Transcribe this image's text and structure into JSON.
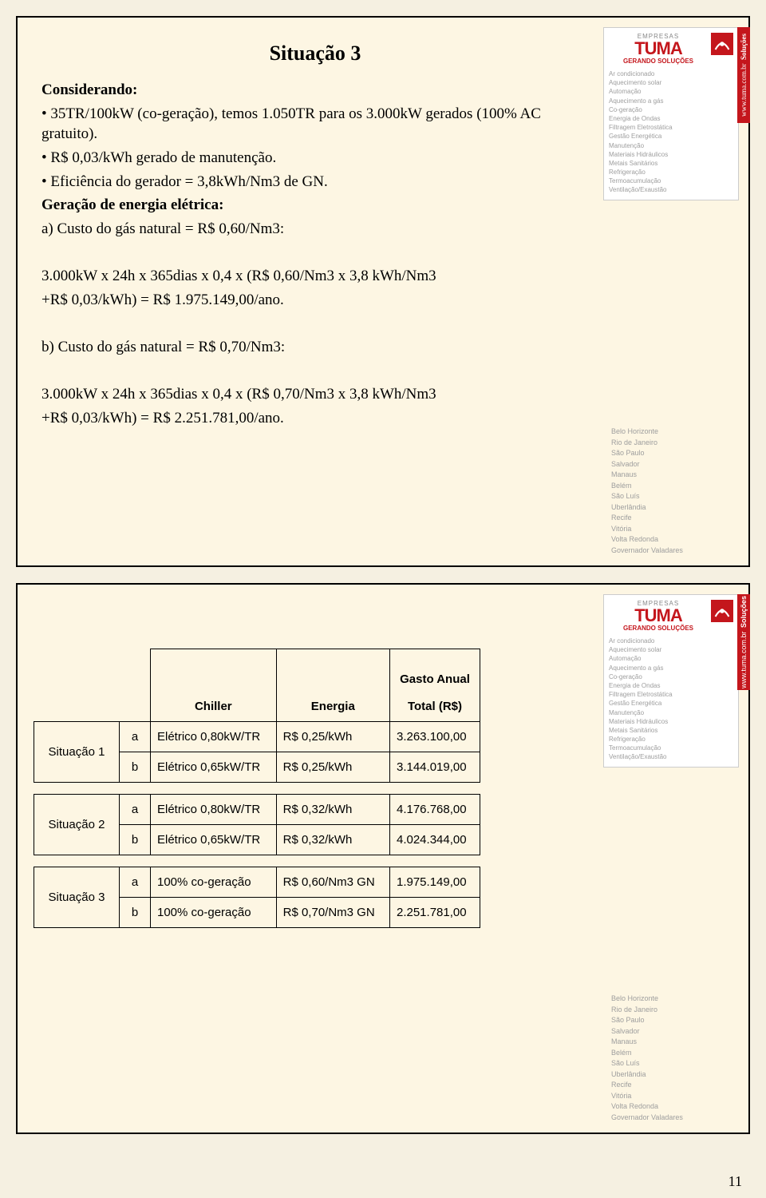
{
  "slide1": {
    "title": "Situação 3",
    "considerando": "Considerando:",
    "b1": "35TR/100kW (co-geração), temos 1.050TR para os 3.000kW gerados (100% AC gratuito).",
    "b2": "R$ 0,03/kWh gerado de manutenção.",
    "b3": "Eficiência do gerador = 3,8kWh/Nm3 de GN.",
    "geracao": "Geração de energia elétrica:",
    "a_label": "a)    Custo do gás natural = R$ 0,60/Nm3:",
    "a_calc1": "3.000kW x 24h x 365dias x 0,4 x (R$ 0,60/Nm3 x 3,8 kWh/Nm3",
    "a_calc2": "+R$ 0,03/kWh) = R$ 1.975.149,00/ano.",
    "b_label": "b)    Custo do gás natural = R$ 0,70/Nm3:",
    "b_calc1": "3.000kW x 24h x 365dias x 0,4 x (R$ 0,70/Nm3 x 3,8 kWh/Nm3",
    "b_calc2": "+R$ 0,03/kWh) = R$ 2.251.781,00/ano."
  },
  "logo": {
    "empresas": "EMPRESAS",
    "name": "TUMA",
    "tagline": "GERANDO SOLUÇÕES",
    "site": "www.tuma.com.br",
    "solucoes": "Soluções",
    "services": [
      "Ar condicionado",
      "Aquecimento solar",
      "Automação",
      "Aquecimento a gás",
      "Co-geração",
      "Energia de Ondas",
      "Filtragem Eletrostática",
      "Gestão Energética",
      "Manutenção",
      "Materiais Hidráulicos",
      "Metais Sanitários",
      "Refrigeração",
      "Termoacumulação",
      "Ventilação/Exaustão"
    ],
    "cities": [
      "Belo Horizonte",
      "Rio de Janeiro",
      "São Paulo",
      "Salvador",
      "Manaus",
      "Belém",
      "São Luís",
      "Uberlândia",
      "Recife",
      "Vitória",
      "Volta Redonda",
      "Governador Valadares"
    ]
  },
  "table": {
    "headers": {
      "chiller": "Chiller",
      "energia": "Energia",
      "gasto": "Gasto Anual",
      "total": "Total (R$)"
    },
    "rows": [
      {
        "sit": "Situação 1",
        "lbl": "a",
        "chiller": "Elétrico 0,80kW/TR",
        "energia": "R$ 0,25/kWh",
        "total": "3.263.100,00"
      },
      {
        "sit": "",
        "lbl": "b",
        "chiller": "Elétrico 0,65kW/TR",
        "energia": "R$ 0,25/kWh",
        "total": "3.144.019,00"
      },
      {
        "sit": "Situação 2",
        "lbl": "a",
        "chiller": "Elétrico 0,80kW/TR",
        "energia": "R$ 0,32/kWh",
        "total": "4.176.768,00"
      },
      {
        "sit": "",
        "lbl": "b",
        "chiller": "Elétrico 0,65kW/TR",
        "energia": "R$ 0,32/kWh",
        "total": "4.024.344,00"
      },
      {
        "sit": "Situação 3",
        "lbl": "a",
        "chiller": "100% co-geração",
        "energia": "R$ 0,60/Nm3 GN",
        "total": "1.975.149,00"
      },
      {
        "sit": "",
        "lbl": "b",
        "chiller": "100% co-geração",
        "energia": "R$ 0,70/Nm3 GN",
        "total": "2.251.781,00"
      }
    ]
  },
  "page": "11"
}
